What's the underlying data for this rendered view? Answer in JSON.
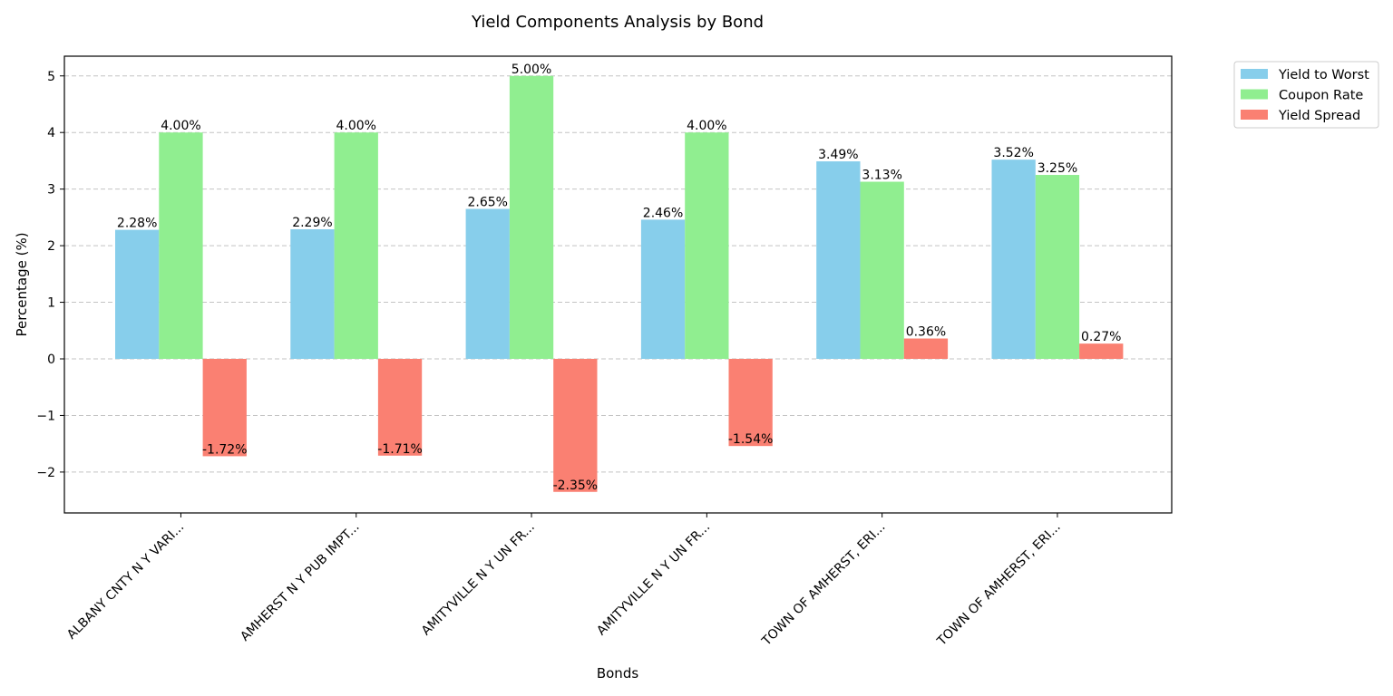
{
  "chart_data": {
    "type": "bar",
    "title": "Yield Components Analysis by Bond",
    "xlabel": "Bonds",
    "ylabel": "Percentage (%)",
    "ylim": [
      -2.7,
      5.35
    ],
    "yticks": [
      -2,
      -1,
      0,
      1,
      2,
      3,
      4,
      5
    ],
    "ytick_labels": [
      "−2",
      "−1",
      "0",
      "1",
      "2",
      "3",
      "4",
      "5"
    ],
    "grid": true,
    "legend_position": "outside-top-right",
    "categories": [
      "ALBANY CNTY N Y VARI...",
      "AMHERST N Y PUB IMPT...",
      "AMITYVILLE N Y UN FR...",
      "AMITYVILLE N Y UN FR...",
      "TOWN OF AMHERST, ERI...",
      "TOWN OF AMHERST, ERI..."
    ],
    "series": [
      {
        "name": "Yield to Worst",
        "color": "#87ceeb",
        "values": [
          2.28,
          2.29,
          2.65,
          2.46,
          3.49,
          3.52
        ],
        "labels": [
          "2.28%",
          "2.29%",
          "2.65%",
          "2.46%",
          "3.49%",
          "3.52%"
        ]
      },
      {
        "name": "Coupon Rate",
        "color": "#90ee90",
        "values": [
          4.0,
          4.0,
          5.0,
          4.0,
          3.13,
          3.25
        ],
        "labels": [
          "4.00%",
          "4.00%",
          "5.00%",
          "4.00%",
          "3.13%",
          "3.25%"
        ]
      },
      {
        "name": "Yield Spread",
        "color": "#fa8072",
        "values": [
          -1.72,
          -1.71,
          -2.35,
          -1.54,
          0.36,
          0.27
        ],
        "labels": [
          "-1.72%",
          "-1.71%",
          "-2.35%",
          "-1.54%",
          "0.36%",
          "0.27%"
        ]
      }
    ]
  }
}
